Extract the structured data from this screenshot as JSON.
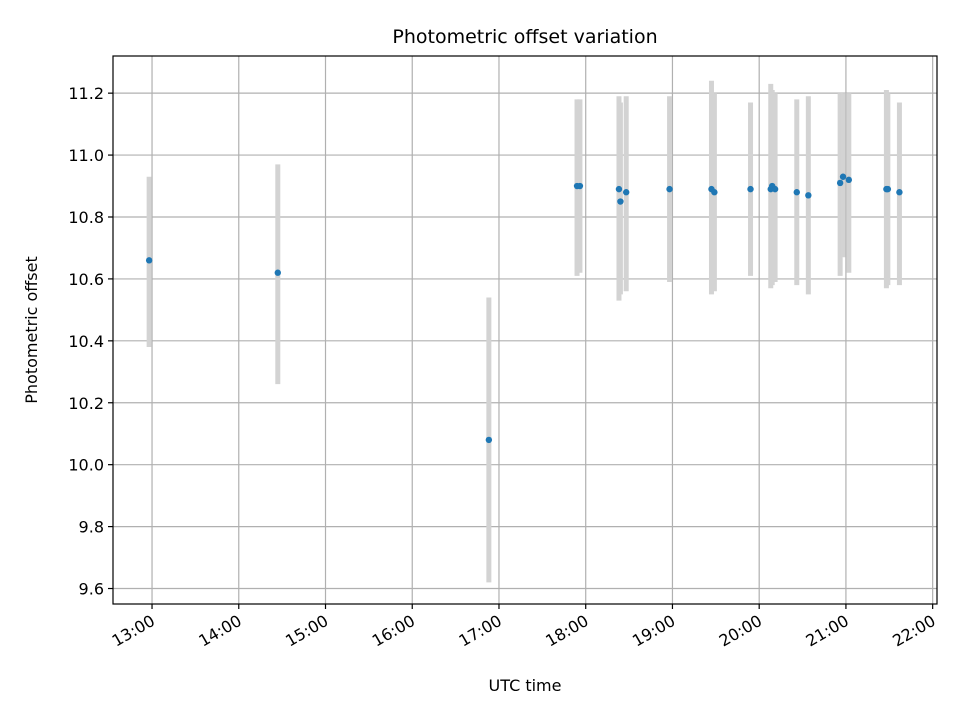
{
  "chart_data": {
    "type": "scatter",
    "title": "Photometric offset variation",
    "xlabel": "UTC time",
    "ylabel": "Photometric offset",
    "x_ticks": [
      "13:00",
      "14:00",
      "15:00",
      "16:00",
      "17:00",
      "18:00",
      "19:00",
      "20:00",
      "21:00",
      "22:00"
    ],
    "y_ticks": [
      "9.6",
      "9.8",
      "10.0",
      "10.2",
      "10.4",
      "10.6",
      "10.8",
      "11.0",
      "11.2"
    ],
    "xlim": [
      "12:33",
      "22:03"
    ],
    "ylim": [
      9.55,
      11.32
    ],
    "grid": true,
    "errorbar_color": "#d3d3d3",
    "point_color": "#1f77b4",
    "points": [
      {
        "t": "12:58",
        "y": 10.66,
        "ylow": 10.38,
        "yhigh": 10.93
      },
      {
        "t": "14:27",
        "y": 10.62,
        "ylow": 10.26,
        "yhigh": 10.97
      },
      {
        "t": "16:53",
        "y": 10.08,
        "ylow": 9.62,
        "yhigh": 10.54
      },
      {
        "t": "17:54",
        "y": 10.9,
        "ylow": 10.61,
        "yhigh": 11.18
      },
      {
        "t": "17:56",
        "y": 10.9,
        "ylow": 10.62,
        "yhigh": 11.18
      },
      {
        "t": "18:23",
        "y": 10.89,
        "ylow": 10.53,
        "yhigh": 11.19
      },
      {
        "t": "18:24",
        "y": 10.85,
        "ylow": 10.55,
        "yhigh": 11.17
      },
      {
        "t": "18:28",
        "y": 10.88,
        "ylow": 10.56,
        "yhigh": 11.19
      },
      {
        "t": "18:58",
        "y": 10.89,
        "ylow": 10.59,
        "yhigh": 11.19
      },
      {
        "t": "19:27",
        "y": 10.89,
        "ylow": 10.55,
        "yhigh": 11.24
      },
      {
        "t": "19:29",
        "y": 10.88,
        "ylow": 10.56,
        "yhigh": 11.2
      },
      {
        "t": "19:54",
        "y": 10.89,
        "ylow": 10.61,
        "yhigh": 11.17
      },
      {
        "t": "20:08",
        "y": 10.89,
        "ylow": 10.57,
        "yhigh": 11.23
      },
      {
        "t": "20:09",
        "y": 10.9,
        "ylow": 10.58,
        "yhigh": 11.21
      },
      {
        "t": "20:11",
        "y": 10.89,
        "ylow": 10.59,
        "yhigh": 11.2
      },
      {
        "t": "20:26",
        "y": 10.88,
        "ylow": 10.58,
        "yhigh": 11.18
      },
      {
        "t": "20:34",
        "y": 10.87,
        "ylow": 10.55,
        "yhigh": 11.19
      },
      {
        "t": "20:56",
        "y": 10.91,
        "ylow": 10.61,
        "yhigh": 11.2
      },
      {
        "t": "20:58",
        "y": 10.93,
        "ylow": 10.67,
        "yhigh": 11.2
      },
      {
        "t": "21:02",
        "y": 10.92,
        "ylow": 10.62,
        "yhigh": 11.2
      },
      {
        "t": "21:28",
        "y": 10.89,
        "ylow": 10.57,
        "yhigh": 11.21
      },
      {
        "t": "21:29",
        "y": 10.89,
        "ylow": 10.58,
        "yhigh": 11.2
      },
      {
        "t": "21:37",
        "y": 10.88,
        "ylow": 10.58,
        "yhigh": 11.17
      }
    ]
  }
}
